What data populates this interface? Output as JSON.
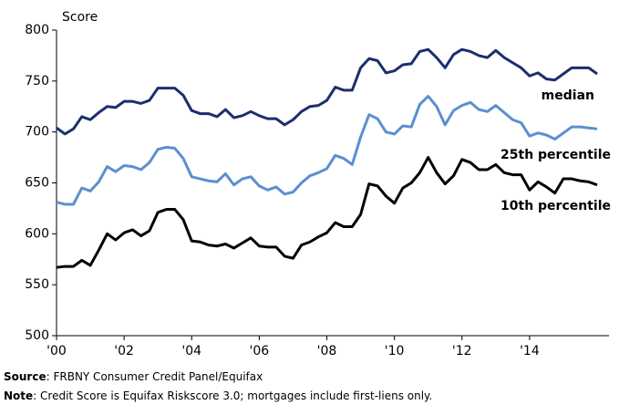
{
  "chart_data": {
    "type": "line",
    "ylabel": "Score",
    "x": [
      2000,
      2000.25,
      2000.5,
      2000.75,
      2001,
      2001.25,
      2001.5,
      2001.75,
      2002,
      2002.25,
      2002.5,
      2002.75,
      2003,
      2003.25,
      2003.5,
      2003.75,
      2004,
      2004.25,
      2004.5,
      2004.75,
      2005,
      2005.25,
      2005.5,
      2005.75,
      2006,
      2006.25,
      2006.5,
      2006.75,
      2007,
      2007.25,
      2007.5,
      2007.75,
      2008,
      2008.25,
      2008.5,
      2008.75,
      2009,
      2009.25,
      2009.5,
      2009.75,
      2010,
      2010.25,
      2010.5,
      2010.75,
      2011,
      2011.25,
      2011.5,
      2011.75,
      2012,
      2012.25,
      2012.5,
      2012.75,
      2013,
      2013.25,
      2013.5,
      2013.75,
      2014,
      2014.25,
      2014.5,
      2014.75,
      2015,
      2015.25,
      2015.5,
      2015.75,
      2016
    ],
    "series": [
      {
        "name": "median",
        "color": "#1b2f6e",
        "values": [
          704,
          698,
          703,
          715,
          712,
          719,
          725,
          724,
          730,
          730,
          728,
          731,
          743,
          743,
          743,
          736,
          721,
          718,
          718,
          715,
          722,
          714,
          716,
          720,
          716,
          713,
          713,
          707,
          712,
          720,
          725,
          726,
          731,
          744,
          741,
          741,
          763,
          772,
          770,
          758,
          760,
          766,
          767,
          779,
          781,
          773,
          763,
          776,
          781,
          779,
          775,
          773,
          780,
          773,
          768,
          763,
          755,
          758,
          752,
          751,
          757,
          763,
          763,
          763,
          757
        ]
      },
      {
        "name": "25th percentile",
        "color": "#5b8fd1",
        "values": [
          631,
          629,
          629,
          645,
          642,
          651,
          666,
          661,
          667,
          666,
          663,
          670,
          683,
          685,
          684,
          674,
          656,
          654,
          652,
          651,
          659,
          648,
          654,
          656,
          647,
          643,
          646,
          639,
          641,
          650,
          657,
          660,
          664,
          677,
          674,
          668,
          695,
          717,
          713,
          700,
          698,
          706,
          705,
          727,
          735,
          725,
          707,
          721,
          726,
          729,
          722,
          720,
          726,
          719,
          712,
          709,
          696,
          699,
          697,
          693,
          699,
          705,
          705,
          704,
          703
        ]
      },
      {
        "name": "10th percentile",
        "color": "#000000",
        "values": [
          567,
          568,
          568,
          574,
          569,
          584,
          600,
          594,
          601,
          604,
          598,
          603,
          621,
          624,
          624,
          614,
          593,
          592,
          589,
          588,
          590,
          586,
          591,
          596,
          588,
          587,
          587,
          578,
          576,
          589,
          592,
          597,
          601,
          611,
          607,
          607,
          619,
          649,
          647,
          637,
          630,
          645,
          650,
          660,
          675,
          660,
          649,
          657,
          673,
          670,
          663,
          663,
          668,
          660,
          658,
          658,
          643,
          651,
          646,
          640,
          654,
          654,
          652,
          651,
          648
        ]
      }
    ],
    "xlim": [
      2000,
      2016.35
    ],
    "xticks": [
      {
        "value": 2000,
        "label": "'00"
      },
      {
        "value": 2002,
        "label": "'02"
      },
      {
        "value": 2004,
        "label": "'04"
      },
      {
        "value": 2006,
        "label": "'06"
      },
      {
        "value": 2008,
        "label": "'08"
      },
      {
        "value": 2010,
        "label": "'10"
      },
      {
        "value": 2012,
        "label": "'12"
      },
      {
        "value": 2014,
        "label": "'14"
      }
    ],
    "ylim": [
      500,
      800
    ],
    "yticks": [
      500,
      550,
      600,
      650,
      700,
      750,
      800
    ],
    "grid": false,
    "notes": [
      {
        "label": "Source",
        "text": ": FRBNY Consumer Credit Panel/Equifax"
      },
      {
        "label": "Note",
        "text": ": Credit Score is Equifax Riskscore 3.0; mortgages include first-liens only."
      }
    ]
  }
}
